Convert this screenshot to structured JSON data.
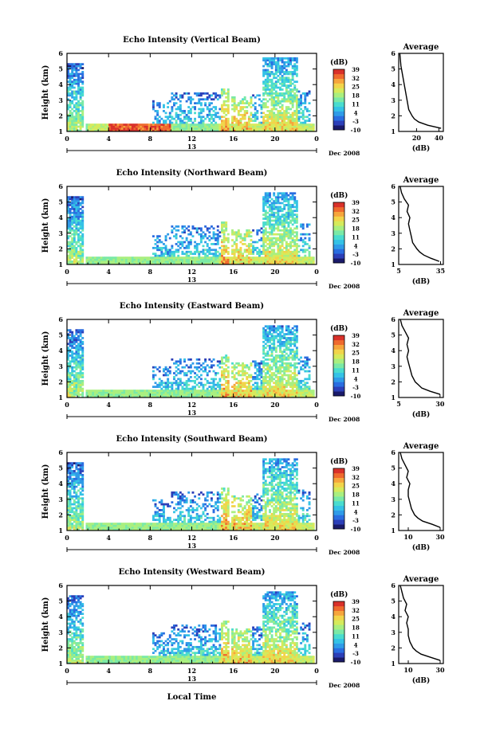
{
  "common": {
    "ylabel": "Height (km)",
    "yticks": [
      1,
      2,
      3,
      4,
      5,
      6
    ],
    "xticks": [
      "0",
      "4",
      "8",
      "12",
      "16",
      "20",
      "0"
    ],
    "date_number": "13",
    "date_label": "Dec 2008",
    "cbar_title": "(dB)",
    "cbar_ticks": [
      "39",
      "32",
      "25",
      "18",
      "11",
      "4",
      "-3",
      "-10"
    ],
    "avg_title": "Average",
    "avg_xlabel": "(dB)",
    "xlabel_bottom": "Local Time"
  },
  "colors": {
    "scale": [
      "#1a1a6a",
      "#2c3fb8",
      "#2a6de0",
      "#2f9be8",
      "#34c2e6",
      "#49dccf",
      "#7ae9a6",
      "#a9ef7f",
      "#d6ea5b",
      "#f2d44a",
      "#f6a53c",
      "#ef6a2e",
      "#d9312a"
    ],
    "profile_line": "#000000",
    "axis": "#000000"
  },
  "chart_data": [
    {
      "type": "heatmap",
      "title": "Echo Intensity (Vertical Beam)",
      "ylim": [
        1,
        6
      ],
      "xlim_hours": [
        0,
        24
      ],
      "clim_dB": [
        -10,
        39
      ],
      "profile": {
        "type": "line",
        "xticks": [
          20,
          40
        ],
        "xlim": [
          4,
          44
        ],
        "height_km": [
          1.2,
          1.4,
          1.6,
          1.8,
          2.0,
          2.4,
          2.8,
          3.2,
          3.6,
          4.0,
          4.4,
          4.8,
          5.2,
          5.6,
          6.0
        ],
        "dB": [
          42,
          30,
          22,
          18,
          16,
          13,
          12,
          11,
          10,
          9,
          8,
          7,
          6,
          5.5,
          5
        ]
      }
    },
    {
      "type": "heatmap",
      "title": "Echo Intensity (Northward Beam)",
      "ylim": [
        1,
        6
      ],
      "xlim_hours": [
        0,
        24
      ],
      "clim_dB": [
        -10,
        39
      ],
      "profile": {
        "type": "line",
        "xticks": [
          5,
          35
        ],
        "xlim": [
          5,
          37
        ],
        "height_km": [
          1.2,
          1.4,
          1.6,
          1.8,
          2.0,
          2.4,
          2.8,
          3.2,
          3.6,
          4.0,
          4.4,
          4.8,
          5.2,
          5.6,
          6.0
        ],
        "dB": [
          34,
          28,
          23,
          20,
          18,
          15,
          14,
          13,
          12,
          13,
          11,
          12,
          9,
          7,
          6
        ]
      }
    },
    {
      "type": "heatmap",
      "title": "Echo Intensity (Eastward Beam)",
      "ylim": [
        1,
        6
      ],
      "xlim_hours": [
        0,
        24
      ],
      "clim_dB": [
        -10,
        39
      ],
      "profile": {
        "type": "line",
        "xticks": [
          5,
          30
        ],
        "xlim": [
          5,
          32
        ],
        "height_km": [
          1.2,
          1.4,
          1.6,
          1.8,
          2.0,
          2.4,
          2.8,
          3.2,
          3.6,
          4.0,
          4.4,
          4.8,
          5.2,
          5.6,
          6.0
        ],
        "dB": [
          30,
          24,
          19,
          17,
          15,
          13,
          12,
          11,
          10,
          11,
          10,
          11,
          9,
          7,
          6
        ]
      }
    },
    {
      "type": "heatmap",
      "title": "Echo Intensity (Southward Beam)",
      "ylim": [
        1,
        6
      ],
      "xlim_hours": [
        0,
        24
      ],
      "clim_dB": [
        -10,
        39
      ],
      "profile": {
        "type": "line",
        "xticks": [
          10,
          30
        ],
        "xlim": [
          4,
          32
        ],
        "height_km": [
          1.2,
          1.4,
          1.6,
          1.8,
          2.0,
          2.4,
          2.8,
          3.2,
          3.6,
          4.0,
          4.4,
          4.8,
          5.2,
          5.6,
          6.0
        ],
        "dB": [
          30,
          25,
          19,
          16,
          14,
          12,
          11,
          10,
          10,
          11,
          9,
          10,
          8,
          6,
          5
        ]
      }
    },
    {
      "type": "heatmap",
      "title": "Echo Intensity (Westward Beam)",
      "ylim": [
        1,
        6
      ],
      "xlim_hours": [
        0,
        24
      ],
      "clim_dB": [
        -10,
        39
      ],
      "profile": {
        "type": "line",
        "xticks": [
          10,
          30
        ],
        "xlim": [
          4,
          32
        ],
        "height_km": [
          1.2,
          1.4,
          1.6,
          1.8,
          2.0,
          2.4,
          2.8,
          3.2,
          3.6,
          4.0,
          4.4,
          4.8,
          5.2,
          5.6,
          6.0
        ],
        "dB": [
          30,
          24,
          18,
          15,
          13,
          11,
          10,
          10,
          9,
          10,
          8,
          9,
          7,
          6,
          5
        ]
      }
    }
  ]
}
